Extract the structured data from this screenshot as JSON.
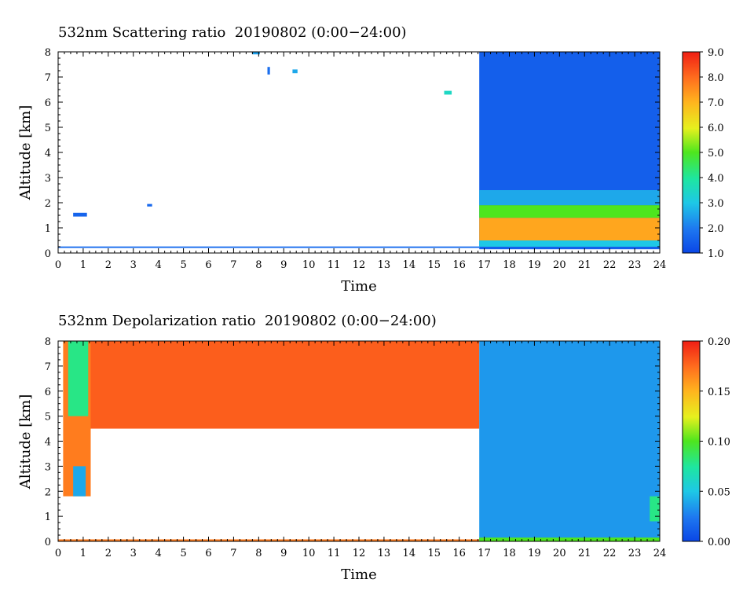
{
  "chart_data": [
    {
      "type": "heatmap",
      "title": "532nm Scattering ratio  20190802 (0:00−24:00)",
      "xlabel": "Time",
      "ylabel": "Altitude [km]",
      "xlim": [
        0,
        24
      ],
      "ylim": [
        0,
        8
      ],
      "x_ticks": [
        "0",
        "1",
        "2",
        "3",
        "4",
        "5",
        "6",
        "7",
        "8",
        "9",
        "10",
        "11",
        "12",
        "13",
        "14",
        "15",
        "16",
        "17",
        "18",
        "19",
        "20",
        "21",
        "22",
        "23",
        "24"
      ],
      "y_ticks": [
        "0",
        "1",
        "2",
        "3",
        "4",
        "5",
        "6",
        "7",
        "8"
      ],
      "colorbar": {
        "range": [
          1.0,
          9.0
        ],
        "ticks": [
          "1.0",
          "2.0",
          "3.0",
          "4.0",
          "5.0",
          "6.0",
          "7.0",
          "8.0",
          "9.0"
        ]
      },
      "features": [
        {
          "t0": 0.0,
          "t1": 16.8,
          "z0": 0.2,
          "z1": 0.26,
          "value": 1.8
        },
        {
          "t0": 0.6,
          "t1": 1.15,
          "z0": 1.45,
          "z1": 1.6,
          "value": 1.6
        },
        {
          "t0": 3.55,
          "t1": 3.75,
          "z0": 1.85,
          "z1": 1.95,
          "value": 1.7
        },
        {
          "t0": 7.75,
          "t1": 8.05,
          "z0": 7.9,
          "z1": 8.0,
          "value": 2.5
        },
        {
          "t0": 8.35,
          "t1": 8.45,
          "z0": 7.1,
          "z1": 7.4,
          "value": 1.8
        },
        {
          "t0": 9.35,
          "t1": 9.55,
          "z0": 7.15,
          "z1": 7.3,
          "value": 2.6
        },
        {
          "t0": 15.4,
          "t1": 15.7,
          "z0": 6.3,
          "z1": 6.45,
          "value": 3.5
        },
        {
          "t0": 16.8,
          "t1": 24.0,
          "z0": 0.15,
          "z1": 8.0,
          "value": 1.5
        },
        {
          "t0": 16.8,
          "t1": 24.0,
          "z0": 1.9,
          "z1": 2.5,
          "value": 2.6
        },
        {
          "t0": 16.8,
          "t1": 24.0,
          "z0": 1.4,
          "z1": 1.9,
          "value": 5.0
        },
        {
          "t0": 16.8,
          "t1": 24.0,
          "z0": 0.5,
          "z1": 1.4,
          "value": 7.2
        },
        {
          "t0": 16.8,
          "t1": 24.0,
          "z0": 0.25,
          "z1": 0.5,
          "value": 3.0
        }
      ]
    },
    {
      "type": "heatmap",
      "title": "532nm Depolarization ratio  20190802 (0:00−24:00)",
      "xlabel": "Time",
      "ylabel": "Altitude [km]",
      "xlim": [
        0,
        24
      ],
      "ylim": [
        0,
        8
      ],
      "x_ticks": [
        "0",
        "1",
        "2",
        "3",
        "4",
        "5",
        "6",
        "7",
        "8",
        "9",
        "10",
        "11",
        "12",
        "13",
        "14",
        "15",
        "16",
        "17",
        "18",
        "19",
        "20",
        "21",
        "22",
        "23",
        "24"
      ],
      "y_ticks": [
        "0",
        "1",
        "2",
        "3",
        "4",
        "5",
        "6",
        "7",
        "8"
      ],
      "colorbar": {
        "range": [
          0.0,
          0.2
        ],
        "ticks": [
          "0.00",
          "0.05",
          "0.10",
          "0.15",
          "0.20"
        ]
      },
      "features": [
        {
          "t0": 0.2,
          "t1": 1.3,
          "z0": 1.8,
          "z1": 8.0,
          "value": 0.17
        },
        {
          "t0": 0.6,
          "t1": 1.1,
          "z0": 1.8,
          "z1": 3.0,
          "value": 0.04
        },
        {
          "t0": 0.4,
          "t1": 1.2,
          "z0": 5.0,
          "z1": 8.0,
          "value": 0.08
        },
        {
          "t0": 1.3,
          "t1": 16.8,
          "z0": 4.5,
          "z1": 8.0,
          "value": 0.18
        },
        {
          "t0": 0.0,
          "t1": 16.8,
          "z0": 0.0,
          "z1": 0.08,
          "value": 0.17
        },
        {
          "t0": 16.8,
          "t1": 24.0,
          "z0": 0.0,
          "z1": 8.0,
          "value": 0.035
        },
        {
          "t0": 16.8,
          "t1": 24.0,
          "z0": 0.0,
          "z1": 0.15,
          "value": 0.1
        },
        {
          "t0": 23.6,
          "t1": 24.0,
          "z0": 0.8,
          "z1": 1.8,
          "value": 0.08
        }
      ]
    }
  ]
}
